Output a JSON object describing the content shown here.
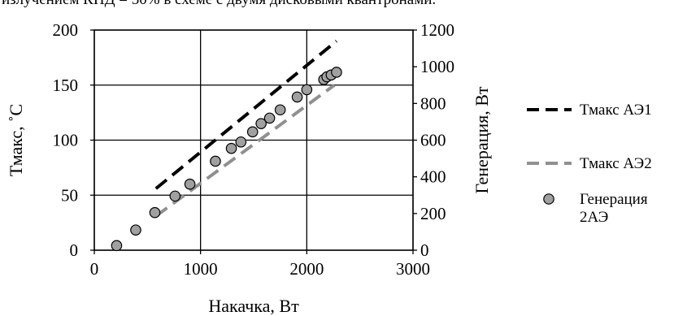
{
  "caption": "излучением КПД = 50% в схеме с двумя дисковыми квантронами.",
  "chart_data": {
    "type": "scatter",
    "title": "",
    "xlabel": "Накачка, Вт",
    "ylabel": "Тмакс, ˚С",
    "ylabel_right": "Генерация, Вт",
    "xlim": [
      0,
      3000
    ],
    "ylim": [
      0,
      200
    ],
    "ylim_right": [
      0,
      1200
    ],
    "x_ticks": [
      "0",
      "1000",
      "2000",
      "3000"
    ],
    "y_ticks": [
      "0",
      "50",
      "100",
      "150",
      "200"
    ],
    "y_ticks_right": [
      "0",
      "200",
      "400",
      "600",
      "800",
      "1000",
      "1200"
    ],
    "grid": true,
    "legend_position": "right",
    "series": [
      {
        "name": "Тмакс АЭ1",
        "style": "dashed-line",
        "color": "#000000",
        "axis": "left",
        "x": [
          580,
          2280
        ],
        "y": [
          56,
          190
        ]
      },
      {
        "name": "Тмакс АЭ2",
        "style": "dashed-line",
        "color": "#909090",
        "axis": "left",
        "x": [
          580,
          2260
        ],
        "y": [
          31,
          150
        ]
      },
      {
        "name": "Генерация 2АЭ",
        "name_lines": [
          "Генерация",
          "2АЭ"
        ],
        "style": "marker",
        "color": "#a0a0a0",
        "axis": "right",
        "x": [
          210,
          390,
          570,
          760,
          900,
          1140,
          1290,
          1380,
          1490,
          1570,
          1650,
          1750,
          1910,
          2000,
          2160,
          2190,
          2230,
          2280
        ],
        "y": [
          25,
          110,
          205,
          295,
          360,
          485,
          555,
          590,
          645,
          690,
          720,
          765,
          835,
          875,
          930,
          945,
          955,
          970
        ]
      }
    ]
  }
}
